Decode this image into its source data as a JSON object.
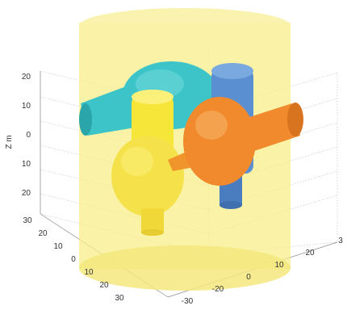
{
  "chart_data": {
    "type": "3d-surface",
    "zlabel": "Z m",
    "zticks": [
      "20",
      "10",
      "0",
      "10",
      "20"
    ],
    "left_depth_ticks": [
      "30",
      "20",
      "10",
      "0",
      "10",
      "20",
      "30"
    ],
    "right_depth_ticks": [
      "-30",
      "-20",
      "0",
      "10",
      "20",
      "3"
    ],
    "objects": [
      {
        "shape": "cylinder",
        "color": "#f7ed8a",
        "opacity": 0.75
      },
      {
        "shape": "sphere-with-arm",
        "color": "#3cc4c9"
      },
      {
        "shape": "sphere-with-arm",
        "color": "#5a8fd1"
      },
      {
        "shape": "sphere-with-arm",
        "color": "#f7e63a"
      },
      {
        "shape": "sphere-with-arm",
        "color": "#f08a2c"
      }
    ]
  }
}
